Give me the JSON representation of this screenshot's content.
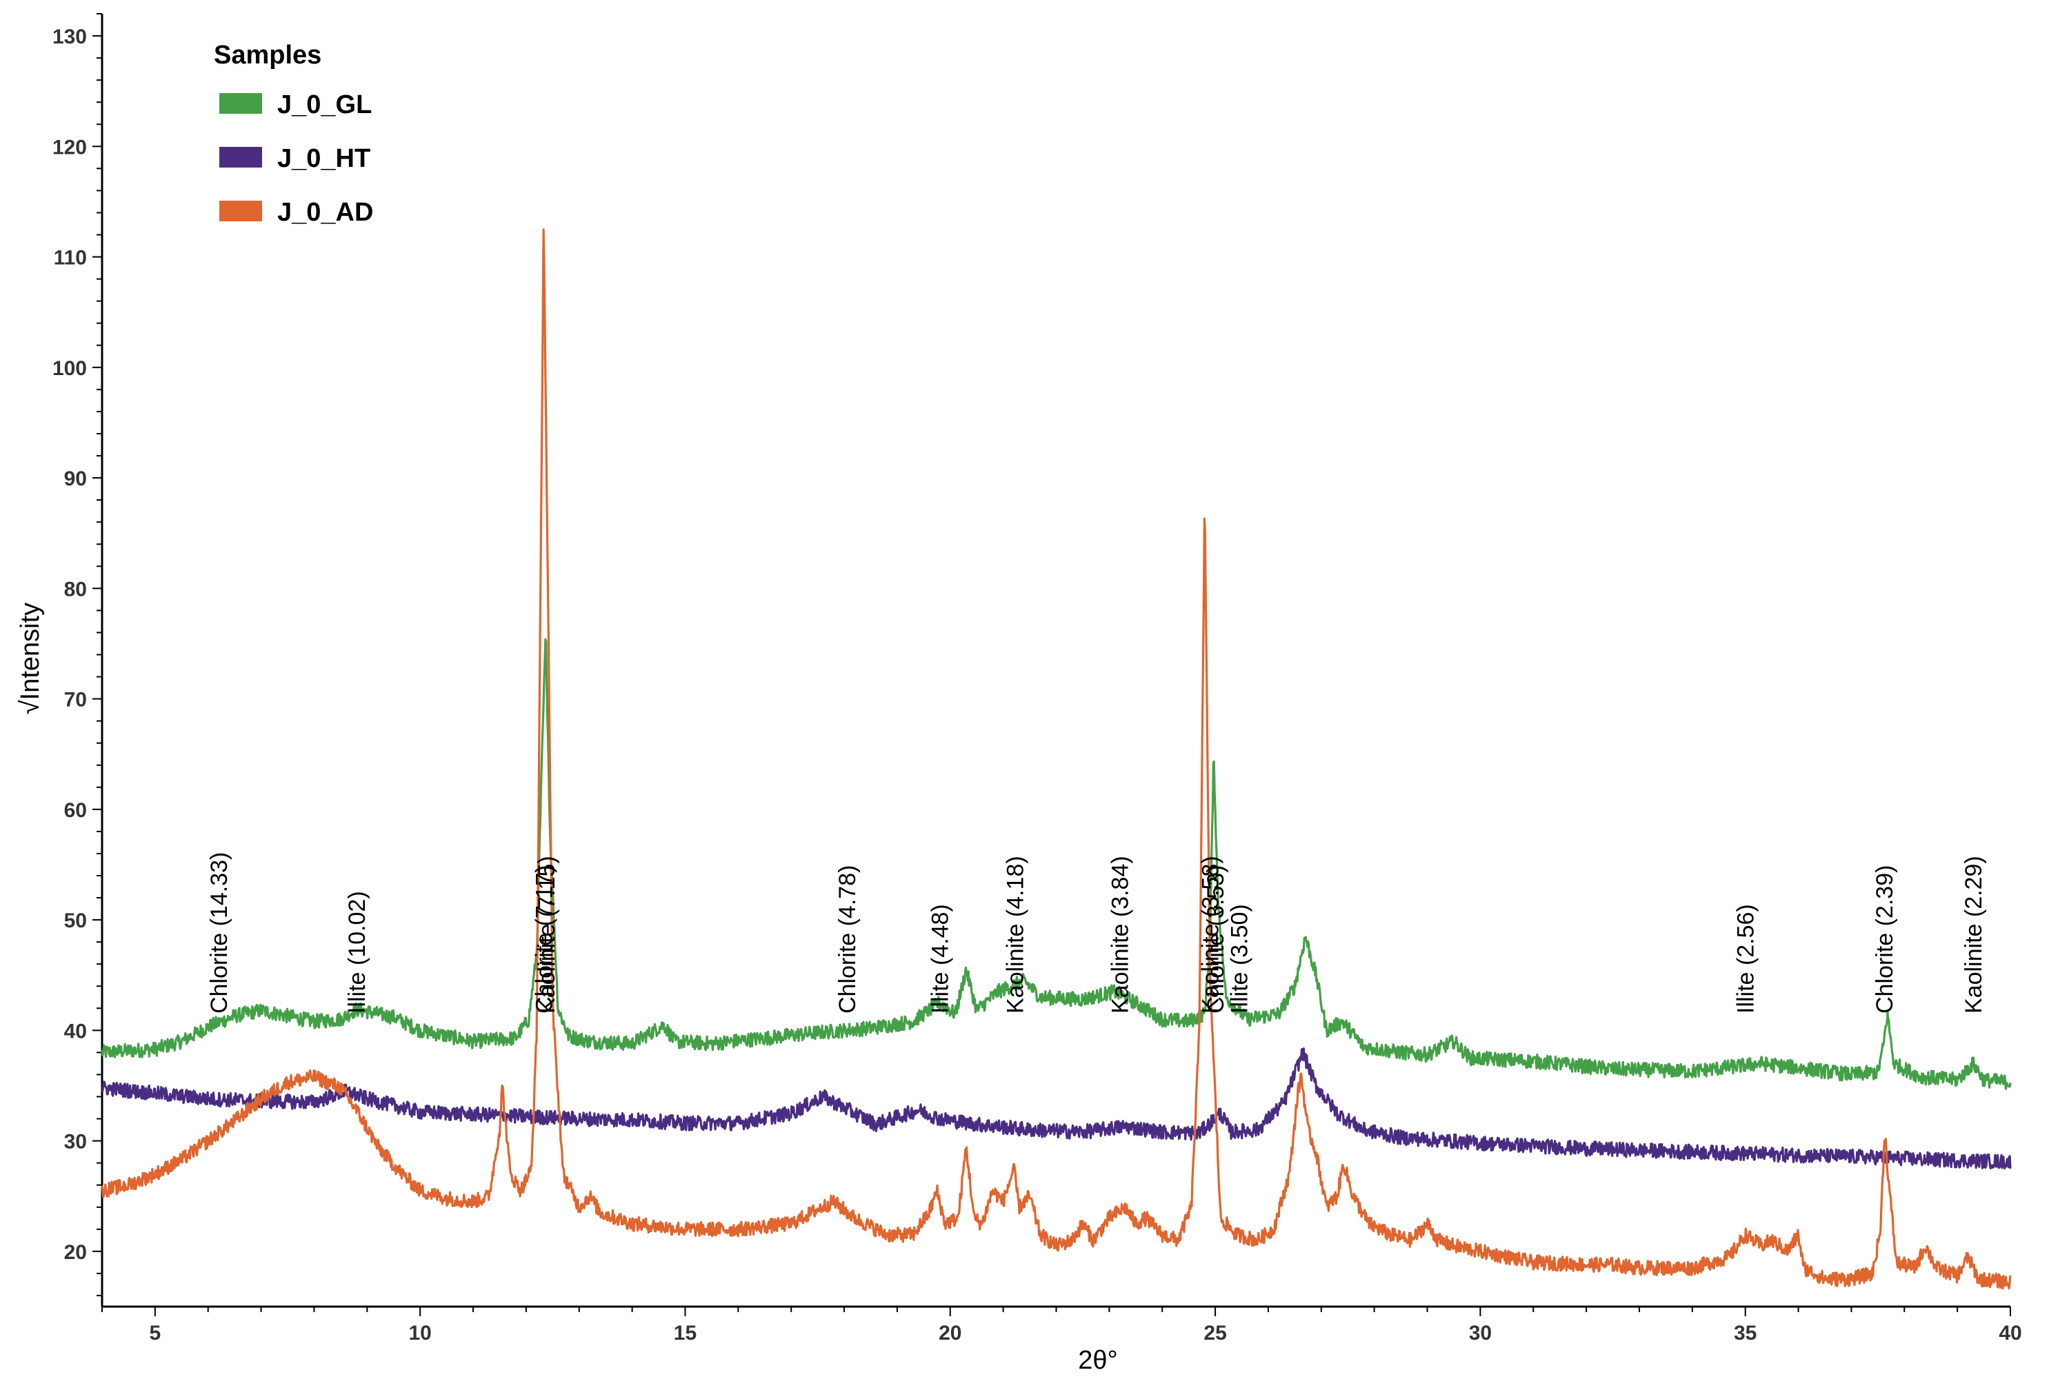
{
  "chart_data": {
    "type": "line",
    "xlabel": "2θ°",
    "ylabel": "√Intensity",
    "xlim": [
      4,
      40
    ],
    "ylim": [
      15,
      132
    ],
    "xticks": [
      5,
      10,
      15,
      20,
      25,
      30,
      35,
      40
    ],
    "yticks": [
      20,
      30,
      40,
      50,
      60,
      70,
      80,
      90,
      100,
      110,
      120,
      130
    ],
    "grid": false,
    "legend": {
      "title": "Samples",
      "position": "top-left",
      "entries": [
        {
          "label": "J_0_GL",
          "color": "#43a047"
        },
        {
          "label": "J_0_HT",
          "color": "#4a2c82"
        },
        {
          "label": "J_0_AD",
          "color": "#e0652e"
        }
      ]
    },
    "series": [
      {
        "name": "J_0_GL",
        "color": "#43a047",
        "points": [
          [
            4,
            38
          ],
          [
            5,
            38.3
          ],
          [
            5.5,
            39
          ],
          [
            6,
            40.3
          ],
          [
            6.5,
            41.3
          ],
          [
            7,
            41.8
          ],
          [
            7.5,
            41.3
          ],
          [
            8,
            40.8
          ],
          [
            8.5,
            41
          ],
          [
            8.8,
            41.9
          ],
          [
            9.5,
            41.2
          ],
          [
            10,
            40
          ],
          [
            11,
            39
          ],
          [
            11.8,
            39.3
          ],
          [
            12.05,
            41
          ],
          [
            12.2,
            47
          ],
          [
            12.3,
            65
          ],
          [
            12.37,
            76
          ],
          [
            12.45,
            58
          ],
          [
            12.6,
            42
          ],
          [
            12.8,
            39.5
          ],
          [
            13.2,
            39
          ],
          [
            14,
            38.8
          ],
          [
            14.6,
            40.5
          ],
          [
            14.8,
            39
          ],
          [
            15.5,
            38.8
          ],
          [
            16.5,
            39.3
          ],
          [
            17.5,
            39.8
          ],
          [
            18.5,
            40.2
          ],
          [
            19.3,
            40.8
          ],
          [
            19.8,
            42.5
          ],
          [
            20.1,
            41.5
          ],
          [
            20.3,
            45.5
          ],
          [
            20.5,
            41.8
          ],
          [
            20.9,
            43.5
          ],
          [
            21.4,
            44.5
          ],
          [
            21.7,
            43
          ],
          [
            22.5,
            42.8
          ],
          [
            23.1,
            43.5
          ],
          [
            23.5,
            42.5
          ],
          [
            24,
            41
          ],
          [
            24.5,
            40.8
          ],
          [
            24.8,
            41.5
          ],
          [
            24.9,
            48
          ],
          [
            24.97,
            65
          ],
          [
            25.05,
            52
          ],
          [
            25.2,
            43
          ],
          [
            25.6,
            41
          ],
          [
            26.2,
            41.5
          ],
          [
            26.5,
            44
          ],
          [
            26.7,
            48.5
          ],
          [
            26.9,
            45
          ],
          [
            27.1,
            40
          ],
          [
            27.4,
            40.8
          ],
          [
            27.8,
            38.5
          ],
          [
            28.5,
            38
          ],
          [
            29,
            37.8
          ],
          [
            29.5,
            39
          ],
          [
            29.8,
            37.5
          ],
          [
            31,
            37.2
          ],
          [
            32.5,
            36.5
          ],
          [
            34,
            36.3
          ],
          [
            35.3,
            37
          ],
          [
            36,
            36.6
          ],
          [
            37,
            36
          ],
          [
            37.5,
            36.2
          ],
          [
            37.6,
            38.5
          ],
          [
            37.68,
            41.5
          ],
          [
            37.8,
            37
          ],
          [
            38.3,
            35.8
          ],
          [
            39,
            35.5
          ],
          [
            39.3,
            37
          ],
          [
            39.5,
            35.5
          ],
          [
            40,
            35.3
          ]
        ]
      },
      {
        "name": "J_0_HT",
        "color": "#4a2c82",
        "points": [
          [
            4,
            34.8
          ],
          [
            5,
            34.3
          ],
          [
            6,
            33.8
          ],
          [
            7,
            33.6
          ],
          [
            8,
            33.5
          ],
          [
            8.6,
            34.5
          ],
          [
            9,
            33.8
          ],
          [
            10,
            32.6
          ],
          [
            11,
            32.4
          ],
          [
            12,
            32.2
          ],
          [
            13,
            32
          ],
          [
            14,
            31.9
          ],
          [
            15,
            31.6
          ],
          [
            16,
            31.6
          ],
          [
            17,
            32.5
          ],
          [
            17.6,
            34
          ],
          [
            18,
            33
          ],
          [
            18.6,
            31.5
          ],
          [
            19.4,
            32.8
          ],
          [
            19.8,
            32
          ],
          [
            20.5,
            31.5
          ],
          [
            21.5,
            31
          ],
          [
            22.5,
            30.8
          ],
          [
            23.3,
            31.3
          ],
          [
            24,
            30.8
          ],
          [
            24.7,
            30.7
          ],
          [
            25.1,
            32.5
          ],
          [
            25.3,
            30.8
          ],
          [
            25.8,
            31
          ],
          [
            26.3,
            33.5
          ],
          [
            26.65,
            38
          ],
          [
            26.9,
            35
          ],
          [
            27.3,
            32.5
          ],
          [
            27.8,
            31
          ],
          [
            28.5,
            30.3
          ],
          [
            30,
            29.8
          ],
          [
            32,
            29.3
          ],
          [
            34,
            29
          ],
          [
            36,
            28.7
          ],
          [
            37.6,
            28.5
          ],
          [
            38.5,
            28.3
          ],
          [
            40,
            28.1
          ]
        ]
      },
      {
        "name": "J_0_AD",
        "color": "#e0652e",
        "points": [
          [
            4,
            25.5
          ],
          [
            4.5,
            26
          ],
          [
            5,
            27
          ],
          [
            5.5,
            28.3
          ],
          [
            6,
            30
          ],
          [
            6.5,
            31.8
          ],
          [
            7,
            33.8
          ],
          [
            7.5,
            35.3
          ],
          [
            8,
            35.8
          ],
          [
            8.5,
            34.8
          ],
          [
            8.8,
            32.8
          ],
          [
            9.2,
            29.5
          ],
          [
            9.6,
            27.3
          ],
          [
            10,
            25.5
          ],
          [
            10.5,
            24.8
          ],
          [
            11,
            24.5
          ],
          [
            11.3,
            25
          ],
          [
            11.5,
            31
          ],
          [
            11.55,
            35
          ],
          [
            11.7,
            27
          ],
          [
            11.9,
            25.5
          ],
          [
            12.1,
            27.5
          ],
          [
            12.2,
            40
          ],
          [
            12.28,
            85
          ],
          [
            12.33,
            113
          ],
          [
            12.4,
            85
          ],
          [
            12.5,
            42
          ],
          [
            12.7,
            27
          ],
          [
            13,
            24
          ],
          [
            13.2,
            25
          ],
          [
            13.4,
            23.5
          ],
          [
            14,
            22.5
          ],
          [
            15,
            22
          ],
          [
            16,
            22
          ],
          [
            17,
            22.5
          ],
          [
            17.5,
            23.8
          ],
          [
            17.8,
            24.5
          ],
          [
            18.2,
            23
          ],
          [
            18.8,
            21.5
          ],
          [
            19.3,
            21.5
          ],
          [
            19.6,
            23.5
          ],
          [
            19.75,
            25.5
          ],
          [
            19.9,
            22.5
          ],
          [
            20.15,
            23
          ],
          [
            20.3,
            29.5
          ],
          [
            20.45,
            23
          ],
          [
            20.6,
            22.5
          ],
          [
            20.8,
            25.5
          ],
          [
            21,
            24.5
          ],
          [
            21.2,
            27.5
          ],
          [
            21.3,
            24
          ],
          [
            21.5,
            25
          ],
          [
            21.7,
            21.5
          ],
          [
            22,
            20.5
          ],
          [
            22.3,
            21
          ],
          [
            22.5,
            22.5
          ],
          [
            22.7,
            21
          ],
          [
            23,
            23
          ],
          [
            23.3,
            24
          ],
          [
            23.5,
            22.5
          ],
          [
            23.7,
            23
          ],
          [
            24,
            21.5
          ],
          [
            24.3,
            21
          ],
          [
            24.55,
            24
          ],
          [
            24.7,
            40
          ],
          [
            24.8,
            88
          ],
          [
            24.9,
            45
          ],
          [
            25.1,
            23
          ],
          [
            25.4,
            21.5
          ],
          [
            25.8,
            21
          ],
          [
            26.1,
            22
          ],
          [
            26.4,
            27
          ],
          [
            26.55,
            34
          ],
          [
            26.62,
            36
          ],
          [
            26.75,
            31
          ],
          [
            26.9,
            29
          ],
          [
            27.1,
            24
          ],
          [
            27.3,
            25
          ],
          [
            27.42,
            28
          ],
          [
            27.6,
            25
          ],
          [
            27.9,
            22.5
          ],
          [
            28.3,
            21.5
          ],
          [
            28.7,
            21
          ],
          [
            29,
            22.5
          ],
          [
            29.2,
            21
          ],
          [
            29.5,
            20.5
          ],
          [
            30,
            20
          ],
          [
            30.5,
            19.5
          ],
          [
            31,
            19
          ],
          [
            32,
            18.8
          ],
          [
            32.5,
            18.8
          ],
          [
            33,
            18.5
          ],
          [
            34,
            18.5
          ],
          [
            34.7,
            19.5
          ],
          [
            35,
            21.5
          ],
          [
            35.3,
            20.5
          ],
          [
            35.5,
            21
          ],
          [
            35.8,
            20
          ],
          [
            36,
            21.5
          ],
          [
            36.1,
            18.5
          ],
          [
            36.5,
            17.5
          ],
          [
            37,
            17.5
          ],
          [
            37.4,
            18
          ],
          [
            37.55,
            22
          ],
          [
            37.63,
            31
          ],
          [
            37.7,
            26.5
          ],
          [
            37.85,
            19
          ],
          [
            38.2,
            18.5
          ],
          [
            38.4,
            20.5
          ],
          [
            38.6,
            18.5
          ],
          [
            39,
            17.8
          ],
          [
            39.2,
            19.5
          ],
          [
            39.4,
            17.5
          ],
          [
            40,
            17.2
          ]
        ]
      }
    ],
    "annotations": [
      {
        "text": "Chlorite (14.33)",
        "x": 6.2
      },
      {
        "text": "Illite (10.02)",
        "x": 8.8
      },
      {
        "text": "Chlorite (7.17)",
        "x": 12.33
      },
      {
        "text": "Kaolinite (7.15)",
        "x": 12.38
      },
      {
        "text": "Chlorite (4.78)",
        "x": 18.05
      },
      {
        "text": "Illite (4.48)",
        "x": 19.8
      },
      {
        "text": "Kaolinite (4.18)",
        "x": 21.22
      },
      {
        "text": "Kaolinite (3.84)",
        "x": 23.2
      },
      {
        "text": "Kaolinite (3.58)",
        "x": 24.9
      },
      {
        "text": "Chlorite (3.53)",
        "x": 25.0
      },
      {
        "text": "Illite (3.50)",
        "x": 25.45
      },
      {
        "text": "Illite (2.56)",
        "x": 35.0
      },
      {
        "text": "Chlorite (2.39)",
        "x": 37.62
      },
      {
        "text": "Kaolinite (2.29)",
        "x": 39.3
      }
    ]
  }
}
